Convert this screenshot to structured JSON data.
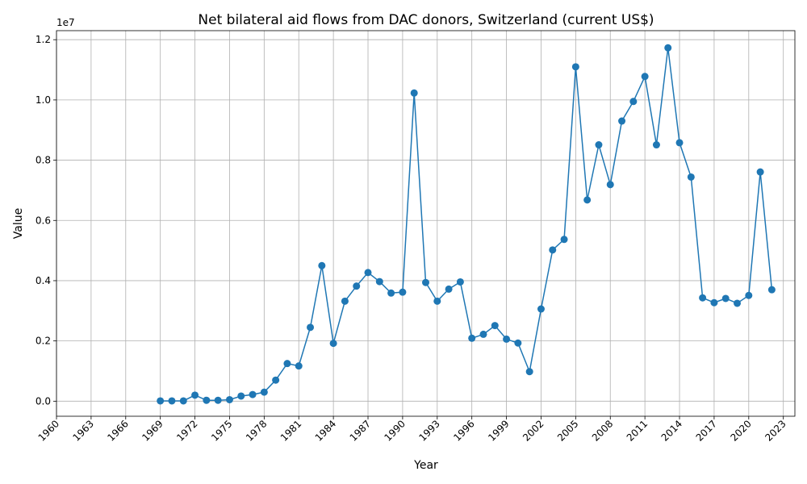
{
  "chart_data": {
    "type": "line",
    "title": "Net bilateral aid flows from DAC donors, Switzerland (current US$)",
    "xlabel": "Year",
    "ylabel": "Value",
    "y_multiplier_label": "1e7",
    "xlim": [
      1960,
      2024
    ],
    "ylim": [
      -500000,
      12300000
    ],
    "x_ticks": [
      "1960",
      "1963",
      "1966",
      "1969",
      "1972",
      "1975",
      "1978",
      "1981",
      "1984",
      "1987",
      "1990",
      "1993",
      "1996",
      "1999",
      "2002",
      "2005",
      "2008",
      "2011",
      "2014",
      "2017",
      "2020",
      "2023"
    ],
    "y_ticks": [
      0,
      2000000,
      4000000,
      6000000,
      8000000,
      10000000,
      12000000
    ],
    "y_tick_labels": [
      "0.0",
      "0.2",
      "0.4",
      "0.6",
      "0.8",
      "1.0",
      "1.2"
    ],
    "grid": true,
    "line_color": "#1f77b4",
    "series": [
      {
        "x": [
          1969,
          1970,
          1971,
          1972,
          1973,
          1974,
          1975,
          1976,
          1977,
          1978,
          1979,
          1980,
          1981,
          1982,
          1983,
          1984,
          1985,
          1986,
          1987,
          1988,
          1989,
          1990,
          1991,
          1992,
          1993,
          1994,
          1995,
          1996,
          1997,
          1998,
          1999,
          2000,
          2001,
          2002,
          2003,
          2004,
          2005,
          2006,
          2007,
          2008,
          2009,
          2010,
          2011,
          2012,
          2013,
          2014,
          2015,
          2016,
          2017,
          2018,
          2019,
          2020,
          2021,
          2022
        ],
        "values": [
          10000,
          10000,
          10000,
          200000,
          30000,
          30000,
          50000,
          170000,
          220000,
          300000,
          700000,
          1250000,
          1170000,
          2450000,
          4500000,
          1920000,
          3320000,
          3820000,
          4270000,
          3970000,
          3590000,
          3620000,
          10230000,
          3940000,
          3320000,
          3720000,
          3960000,
          2090000,
          2220000,
          2510000,
          2060000,
          1930000,
          980000,
          3060000,
          5020000,
          5370000,
          11100000,
          6680000,
          8510000,
          7190000,
          9300000,
          9950000,
          10780000,
          8510000,
          11730000,
          8580000,
          7440000,
          3430000,
          3270000,
          3410000,
          3250000,
          3510000,
          7610000,
          3700000
        ]
      }
    ]
  }
}
